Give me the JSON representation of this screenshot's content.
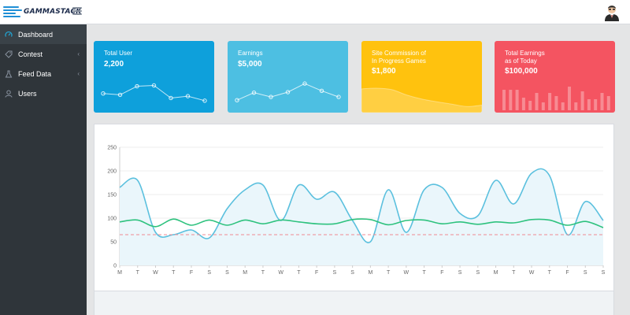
{
  "app": {
    "brand": "GAMMASTACK"
  },
  "sidebar": {
    "items": [
      {
        "label": "Dashboard",
        "icon": "gauge-icon",
        "active": true,
        "has_caret": false
      },
      {
        "label": "Contest",
        "icon": "tag-icon",
        "active": false,
        "has_caret": true
      },
      {
        "label": "Feed Data",
        "icon": "flask-icon",
        "active": false,
        "has_caret": true
      },
      {
        "label": "Users",
        "icon": "user-icon",
        "active": false,
        "has_caret": false
      }
    ],
    "caret": "‹"
  },
  "cards": [
    {
      "title": "Total User",
      "value": "2,200",
      "color": "#0ea0db"
    },
    {
      "title": "Earnings",
      "value": "$5,000",
      "color": "#4dbfe2"
    },
    {
      "title_lines": [
        "Site Commission of",
        "In Progress Games"
      ],
      "value": "$1,800",
      "color": "#ffc20e"
    },
    {
      "title_lines": [
        "Total Earnings",
        "as of Today"
      ],
      "value": "$100,000",
      "color": "#f45461"
    }
  ],
  "sparklines": {
    "total_user": [
      45,
      40,
      72,
      75,
      28,
      35,
      18
    ],
    "earnings": [
      20,
      48,
      32,
      50,
      82,
      55,
      32
    ],
    "site_commission": [
      70,
      72,
      68,
      52,
      40,
      32,
      25,
      18,
      22
    ],
    "total_earnings": [
      65,
      65,
      65,
      40,
      30,
      55,
      25,
      55,
      45,
      25,
      75,
      25,
      60,
      35,
      35,
      55,
      45
    ]
  },
  "chart_data": {
    "type": "line",
    "categories": [
      "M",
      "T",
      "W",
      "T",
      "F",
      "S",
      "S",
      "M",
      "T",
      "W",
      "T",
      "F",
      "S",
      "S",
      "M",
      "T",
      "W",
      "T",
      "F",
      "S",
      "S",
      "M",
      "T",
      "W",
      "T",
      "F",
      "S",
      "S"
    ],
    "yticks": [
      0,
      50,
      100,
      150,
      200,
      250
    ],
    "ylim": [
      0,
      250
    ],
    "grid": true,
    "series": [
      {
        "values": [
          165,
          180,
          70,
          65,
          75,
          58,
          120,
          160,
          170,
          95,
          170,
          140,
          155,
          95,
          50,
          160,
          70,
          160,
          165,
          110,
          105,
          180,
          130,
          195,
          190,
          65,
          135,
          95
        ],
        "color": "#5bc0de",
        "fill": "#eaf6fb"
      },
      {
        "values": [
          92,
          96,
          82,
          98,
          85,
          96,
          85,
          96,
          88,
          96,
          92,
          88,
          88,
          97,
          97,
          86,
          95,
          96,
          88,
          92,
          87,
          92,
          90,
          97,
          96,
          85,
          93,
          80
        ],
        "color": "#2ec27e"
      },
      {
        "values": [
          65,
          65,
          65,
          65,
          65,
          65,
          65,
          65,
          65,
          65,
          65,
          65,
          65,
          65,
          65,
          65,
          65,
          65,
          65,
          65,
          65,
          65,
          65,
          65,
          65,
          65,
          65,
          65
        ],
        "color": "#f08a93",
        "dashed": true
      }
    ]
  }
}
